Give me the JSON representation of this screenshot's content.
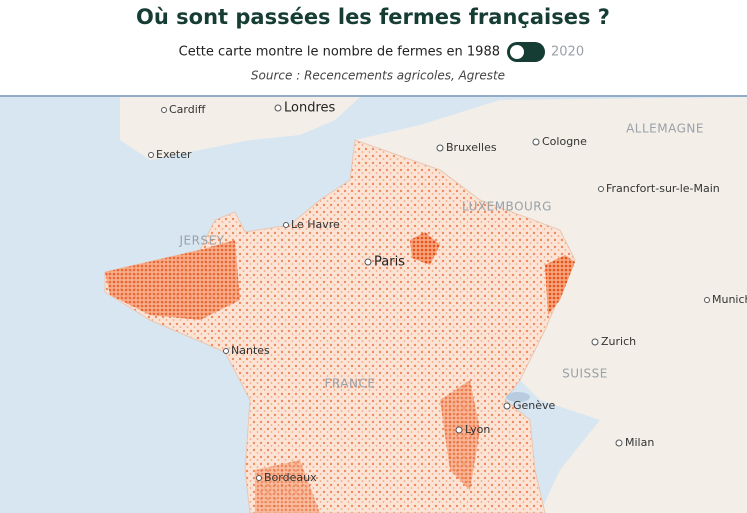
{
  "header": {
    "title": "Où sont passées les fermes françaises ?",
    "toggle_label": "Cette carte montre le nombre de fermes en 1988",
    "toggle_alt": "2020",
    "source": "Source : Recencements agricoles, Agreste"
  },
  "map": {
    "labels": [
      "Cardiff",
      "Londres",
      "Exeter",
      "Bruxelles",
      "Cologne",
      "ALLEMAGNE",
      "Francfort-sur-le-Main",
      "LUXEMBOURG",
      "JERSEY",
      "Le Havre",
      "Paris",
      "Munich",
      "Zurich",
      "SUISSE",
      "Nantes",
      "FRANCE",
      "Genève",
      "Lyon",
      "Milan",
      "Bordeaux"
    ]
  }
}
